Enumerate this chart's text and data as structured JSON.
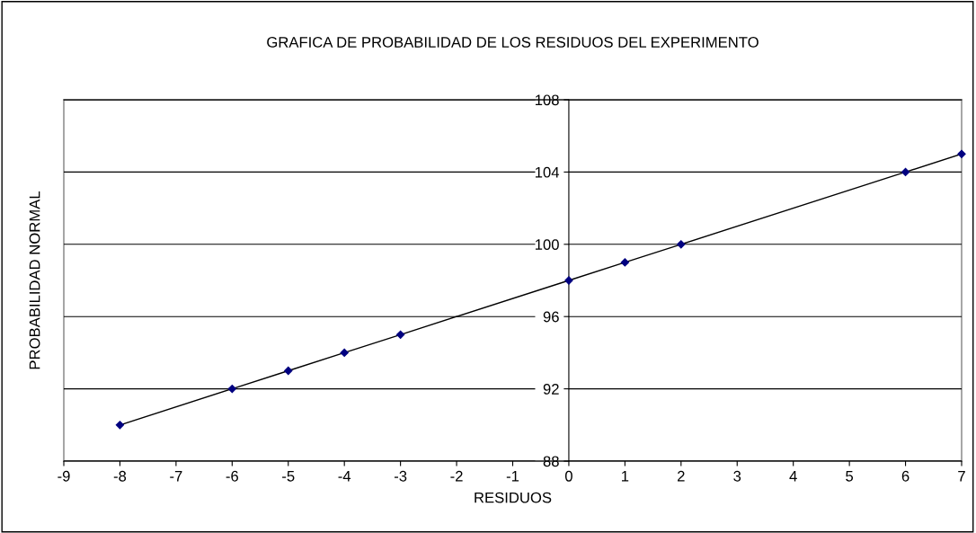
{
  "chart_data": {
    "type": "line",
    "title": "GRAFICA DE PROBABILIDAD DE LOS RESIDUOS DEL EXPERIMENTO",
    "xlabel": "RESIDUOS",
    "ylabel": "PROBABILIDAD NORMAL",
    "x": [
      -8,
      -6,
      -5,
      -4,
      -3,
      0,
      1,
      2,
      6,
      7
    ],
    "series": [
      {
        "color": "#000080",
        "values": [
          90,
          92,
          93,
          94,
          95,
          98,
          99,
          100,
          104,
          105
        ]
      }
    ],
    "xlim": [
      -9,
      7
    ],
    "xticks": [
      -9,
      -8,
      -7,
      -6,
      -5,
      -4,
      -3,
      -2,
      -1,
      0,
      1,
      2,
      3,
      4,
      5,
      6,
      7
    ],
    "ylim": [
      88,
      108
    ],
    "yticks": [
      88,
      92,
      96,
      100,
      104,
      108
    ],
    "grid": "y",
    "marker": "diamond",
    "line_style": "solid",
    "legend": false
  }
}
